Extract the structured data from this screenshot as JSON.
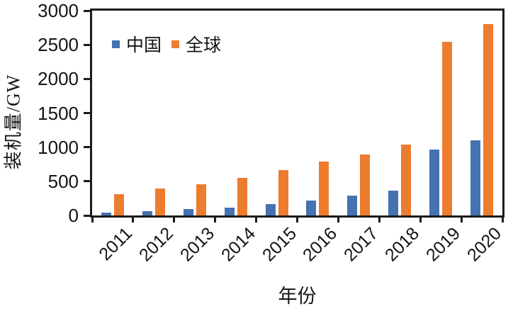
{
  "chart_data": {
    "type": "bar",
    "categories": [
      "2011",
      "2012",
      "2013",
      "2014",
      "2015",
      "2016",
      "2017",
      "2018",
      "2019",
      "2020"
    ],
    "series": [
      {
        "name": "中国",
        "color": "#4572B0",
        "values": [
          45,
          60,
          90,
          115,
          170,
          220,
          295,
          360,
          970,
          1100
        ]
      },
      {
        "name": "全球",
        "color": "#ED7C2F",
        "values": [
          310,
          390,
          455,
          550,
          660,
          790,
          895,
          1040,
          2540,
          2800
        ]
      }
    ],
    "xlabel": "年份",
    "ylabel": "装机量/GW",
    "ylim": [
      0,
      3000
    ],
    "yticks": [
      0,
      500,
      1000,
      1500,
      2000,
      2500,
      3000
    ],
    "legend_position": "top-left-inside",
    "grid": false,
    "axis_color": "#1c1c1c",
    "background": "#ffffff"
  }
}
